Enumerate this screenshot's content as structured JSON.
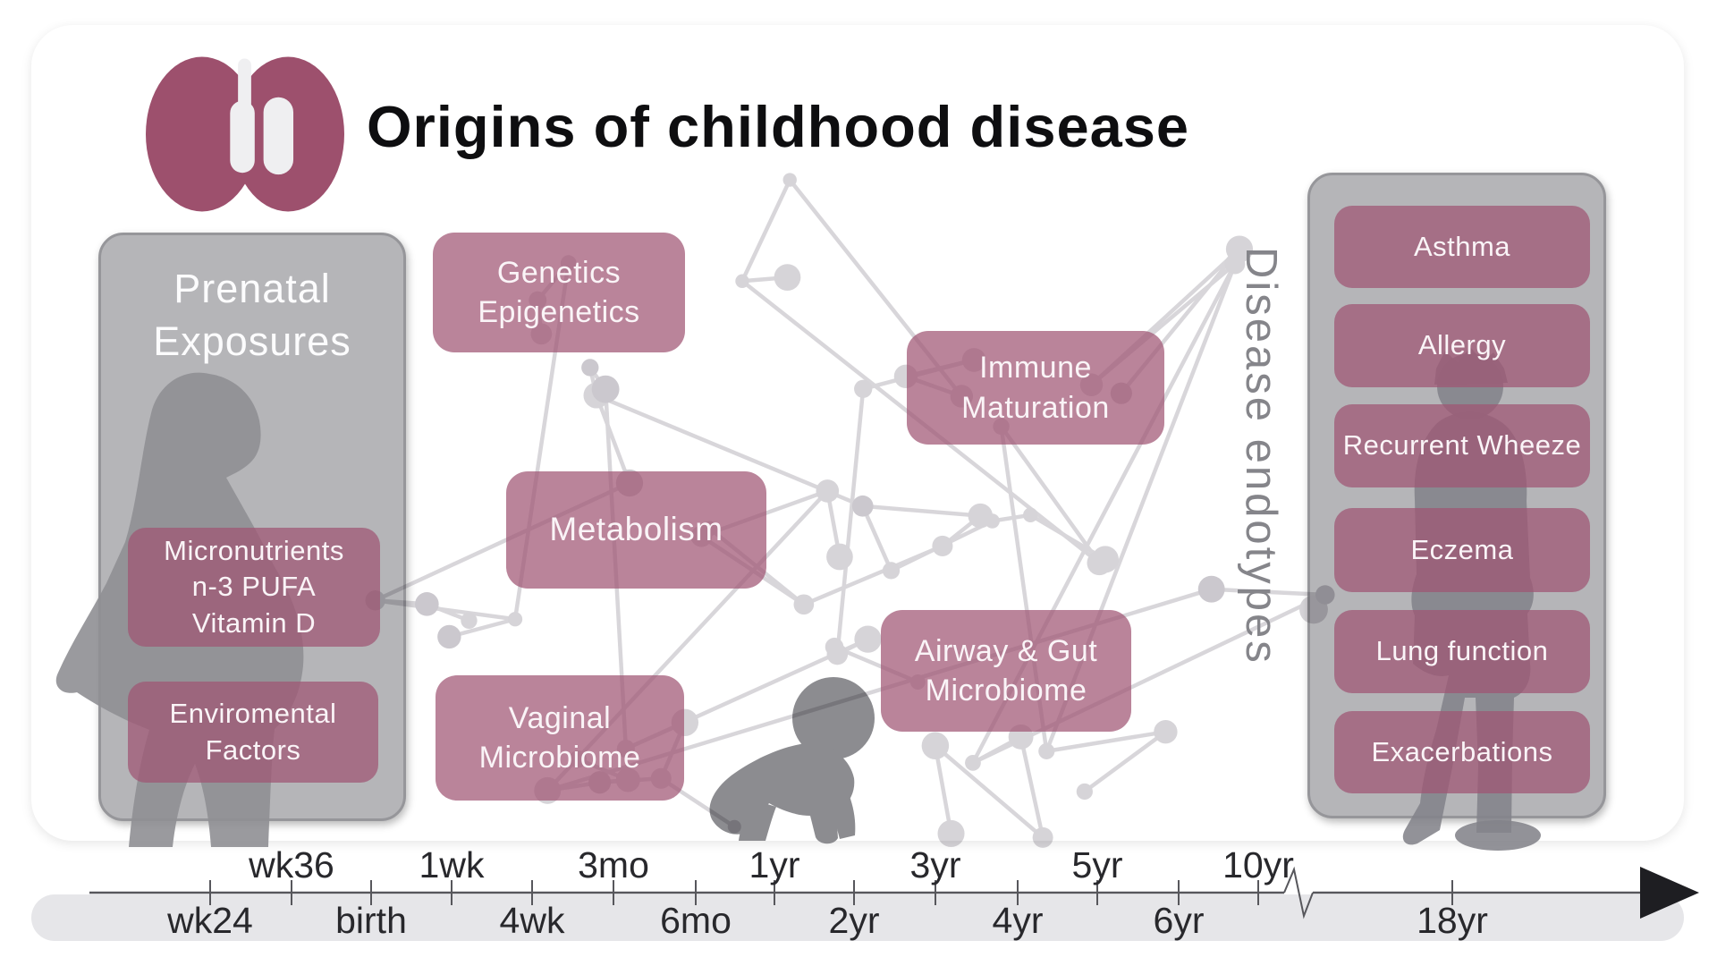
{
  "header": {
    "title": "Origins of childhood disease"
  },
  "logo": {
    "name": "lungs-logo",
    "color": "#9d506d"
  },
  "prenatal_panel": {
    "title": "Prenatal Exposures",
    "boxes": [
      {
        "lines": [
          "Micronutrients",
          "n-3 PUFA",
          "Vitamin D"
        ]
      },
      {
        "lines": [
          "Enviromental",
          "Factors"
        ]
      }
    ]
  },
  "factor_boxes": [
    {
      "id": "genetics-epigenetics",
      "lines": [
        "Genetics",
        "Epigenetics"
      ]
    },
    {
      "id": "metabolism",
      "lines": [
        "Metabolism"
      ]
    },
    {
      "id": "vaginal-microbiome",
      "lines": [
        "Vaginal",
        "Microbiome"
      ]
    },
    {
      "id": "immune-maturation",
      "lines": [
        "Immune",
        "Maturation"
      ]
    },
    {
      "id": "airway-gut-microbiome",
      "lines": [
        "Airway & Gut",
        "Microbiome"
      ]
    }
  ],
  "endotypes": {
    "axis_label": "Disease endotypes",
    "boxes": [
      "Asthma",
      "Allergy",
      "Recurrent Wheeze",
      "Eczema",
      "Lung function",
      "Exacerbations"
    ]
  },
  "timeline": {
    "labels_top": [
      "wk36",
      "1wk",
      "3mo",
      "1yr",
      "3yr",
      "5yr",
      "10yr"
    ],
    "labels_bottom": [
      "wk24",
      "birth",
      "4wk",
      "6mo",
      "2yr",
      "4yr",
      "6yr",
      "18yr"
    ]
  },
  "colors": {
    "accent_maroon": "#9d506d",
    "box_rose": "#a0556f",
    "panel_grey": "#b5b5b8",
    "canvas_grey": "#ececee"
  }
}
